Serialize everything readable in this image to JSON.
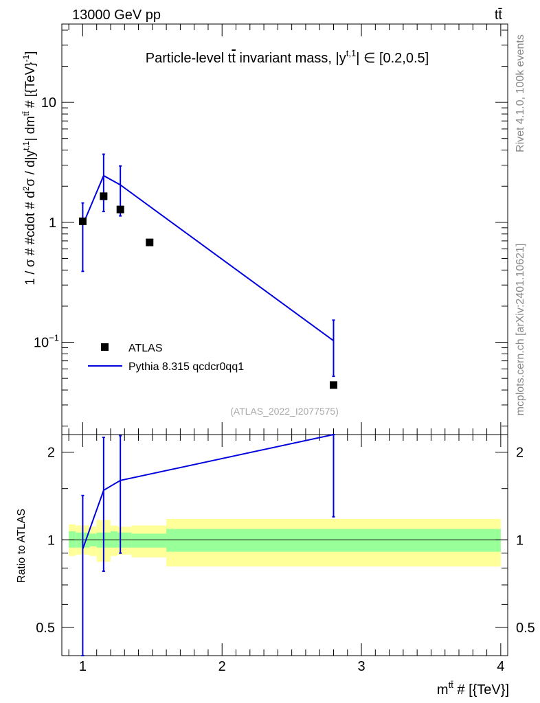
{
  "header": {
    "energy_label": "13000 GeV pp",
    "process_label": "tt̄"
  },
  "side_labels": {
    "rivet": "Rivet 4.1.0,  100k events",
    "source": "mcplots.cern.ch [arXiv:2401.10621]"
  },
  "colors": {
    "mc_line": "#0000dd",
    "data_marker": "#000000",
    "band_inner": "#99ff99",
    "band_outer": "#ffff99"
  },
  "chart_data": [
    {
      "type": "scatter",
      "title": "Particle-level tt̄ invariant mass, |y^{t,1}| ∈ [0.2,0.5]",
      "title_display": {
        "prefix": "Particle-level t",
        "t_bar": "t",
        "middle": " invariant mass, |y",
        "sup": "t,1",
        "suffix": "| ∈ [0.2,0.5]"
      },
      "ylabel": "1 / σ # #cdot # d²σ / d|y^{t,1}| dm^{tt̄} # [{TeV}⁻¹]",
      "ylabel_display": {
        "a": "1 / σ # #cdot # d",
        "a_sup": "2",
        "b": "σ / d|y",
        "b_sup": "t,1",
        "c": "| dm",
        "c_sup": "tt̄",
        "d": " # [{TeV}",
        "d_sup": "-1",
        "e": "]"
      },
      "yscale": "log",
      "ylim": [
        0.017,
        45
      ],
      "xlim": [
        0.85,
        4.05
      ],
      "y_ticks": [
        {
          "value": 0.1,
          "label": "10",
          "sup": "−1"
        },
        {
          "value": 1,
          "label": "1",
          "sup": ""
        },
        {
          "value": 10,
          "label": "10",
          "sup": ""
        }
      ],
      "watermark": "(ATLAS_2022_I2077575)",
      "legend": {
        "placement": "bottom-left",
        "entries": [
          "ATLAS",
          "Pythia 8.315 qcdcr0qq1"
        ]
      },
      "series": [
        {
          "name": "ATLAS",
          "kind": "markers",
          "x": [
            1.0,
            1.15,
            1.27,
            1.48,
            2.8
          ],
          "y": [
            1.02,
            1.65,
            1.28,
            0.68,
            0.044
          ]
        },
        {
          "name": "Pythia 8.315 qcdcr0qq1",
          "kind": "line",
          "x": [
            1.0,
            1.15,
            1.27,
            2.8
          ],
          "y": [
            0.95,
            2.45,
            2.05,
            0.103
          ],
          "err_low": [
            0.39,
            1.23,
            1.13,
            0.052
          ],
          "err_high": [
            1.45,
            3.7,
            2.95,
            0.153
          ]
        }
      ]
    },
    {
      "type": "line",
      "ylabel": "Ratio to ATLAS",
      "xlabel": "m^{tt̄} # [{TeV}]",
      "xlabel_display": {
        "base": "m",
        "sup": "tt̄",
        "rest": " # [{TeV}]"
      },
      "xlim": [
        0.85,
        4.05
      ],
      "ylim": [
        0.4,
        2.3
      ],
      "yscale": "log",
      "x_ticks": [
        {
          "value": 1,
          "label": "1"
        },
        {
          "value": 2,
          "label": "2"
        },
        {
          "value": 3,
          "label": "3"
        },
        {
          "value": 4,
          "label": "4"
        }
      ],
      "y_ticks": [
        {
          "value": 0.5,
          "label": "0.5"
        },
        {
          "value": 1,
          "label": "1"
        },
        {
          "value": 2,
          "label": "2"
        }
      ],
      "reference_line": 1,
      "bands": [
        {
          "x0": 0.9,
          "x1": 0.95,
          "inner": [
            0.94,
            1.07
          ],
          "outer": [
            0.88,
            1.13
          ]
        },
        {
          "x0": 0.95,
          "x1": 1.05,
          "inner": [
            0.94,
            1.06
          ],
          "outer": [
            0.89,
            1.12
          ]
        },
        {
          "x0": 1.05,
          "x1": 1.1,
          "inner": [
            0.95,
            1.05
          ],
          "outer": [
            0.88,
            1.11
          ]
        },
        {
          "x0": 1.1,
          "x1": 1.2,
          "inner": [
            0.94,
            1.06
          ],
          "outer": [
            0.84,
            1.17
          ]
        },
        {
          "x0": 1.2,
          "x1": 1.25,
          "inner": [
            0.94,
            1.07
          ],
          "outer": [
            0.88,
            1.12
          ]
        },
        {
          "x0": 1.25,
          "x1": 1.35,
          "inner": [
            0.94,
            1.06
          ],
          "outer": [
            0.89,
            1.11
          ]
        },
        {
          "x0": 1.35,
          "x1": 1.6,
          "inner": [
            0.94,
            1.05
          ],
          "outer": [
            0.87,
            1.12
          ]
        },
        {
          "x0": 1.6,
          "x1": 4.0,
          "inner": [
            0.91,
            1.09
          ],
          "outer": [
            0.81,
            1.18
          ]
        }
      ],
      "series": [
        {
          "name": "Pythia 8.315 qcdcr0qq1",
          "x": [
            1.0,
            1.15,
            1.27,
            2.8
          ],
          "y": [
            0.93,
            1.48,
            1.6,
            2.35
          ],
          "err_low": [
            0.38,
            0.78,
            0.9,
            1.2
          ],
          "err_high": [
            1.42,
            2.25,
            2.28,
            2.35
          ]
        }
      ]
    }
  ]
}
